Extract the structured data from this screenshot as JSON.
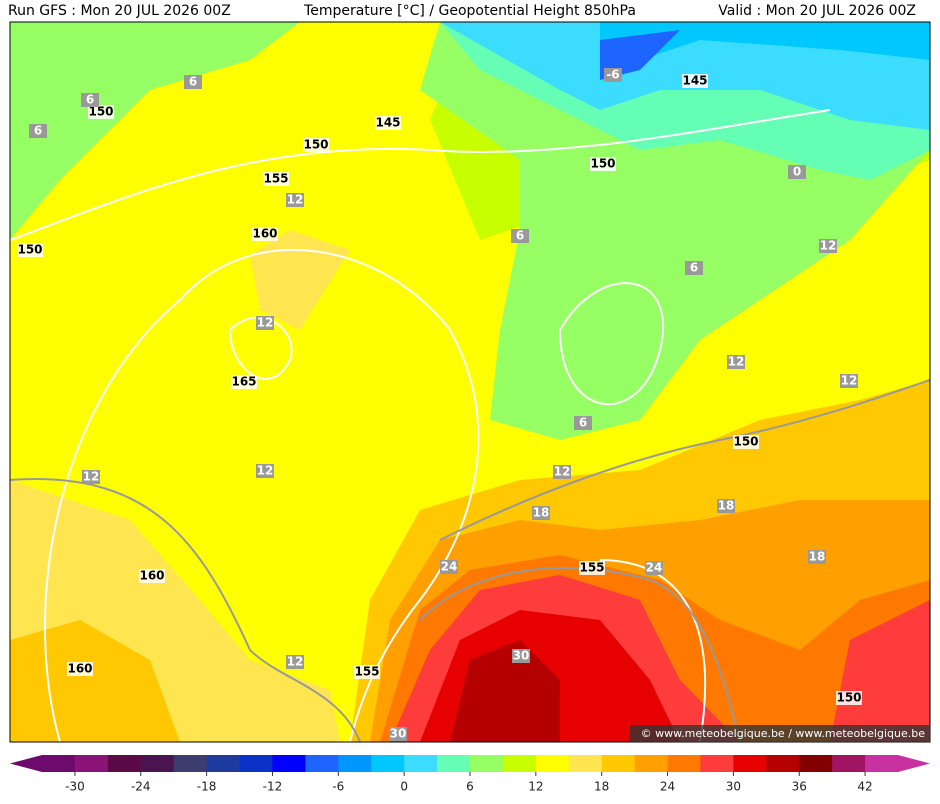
{
  "header": {
    "left": "Run GFS : Mon 20 JUL 2026 00Z",
    "center": "Temperature [°C] / Geopotential Height 850hPa",
    "right": "Valid : Mon 20 JUL 2026 00Z"
  },
  "credit": "© www.meteobelgique.be / www.meteobelgique.be",
  "height_labels": [
    150,
    145,
    150,
    150,
    145,
    155,
    160,
    150,
    165,
    150,
    160,
    155,
    160,
    155,
    150
  ],
  "temperature_labels": [
    -6,
    6,
    6,
    6,
    12,
    6,
    6,
    12,
    12,
    12,
    12,
    6,
    12,
    12,
    12,
    18,
    18,
    18,
    24,
    24,
    30,
    12,
    30,
    0
  ],
  "colorbar": {
    "range": [
      -33,
      45
    ],
    "colors": [
      "#6e0a6e",
      "#8c1478",
      "#5a0a46",
      "#4a1450",
      "#3c3c6e",
      "#1e3ca0",
      "#0a32c8",
      "#0000ff",
      "#1e64ff",
      "#0096ff",
      "#00c8ff",
      "#3cdcff",
      "#64ffb4",
      "#96ff64",
      "#c8ff00",
      "#ffff00",
      "#ffe650",
      "#ffc800",
      "#ffa000",
      "#ff7800",
      "#ff3c3c",
      "#e60000",
      "#b40000",
      "#820000",
      "#a01464",
      "#c832a0"
    ],
    "ticks": [
      -30,
      -24,
      -18,
      -12,
      -6,
      0,
      6,
      12,
      18,
      24,
      30,
      36,
      42
    ]
  }
}
